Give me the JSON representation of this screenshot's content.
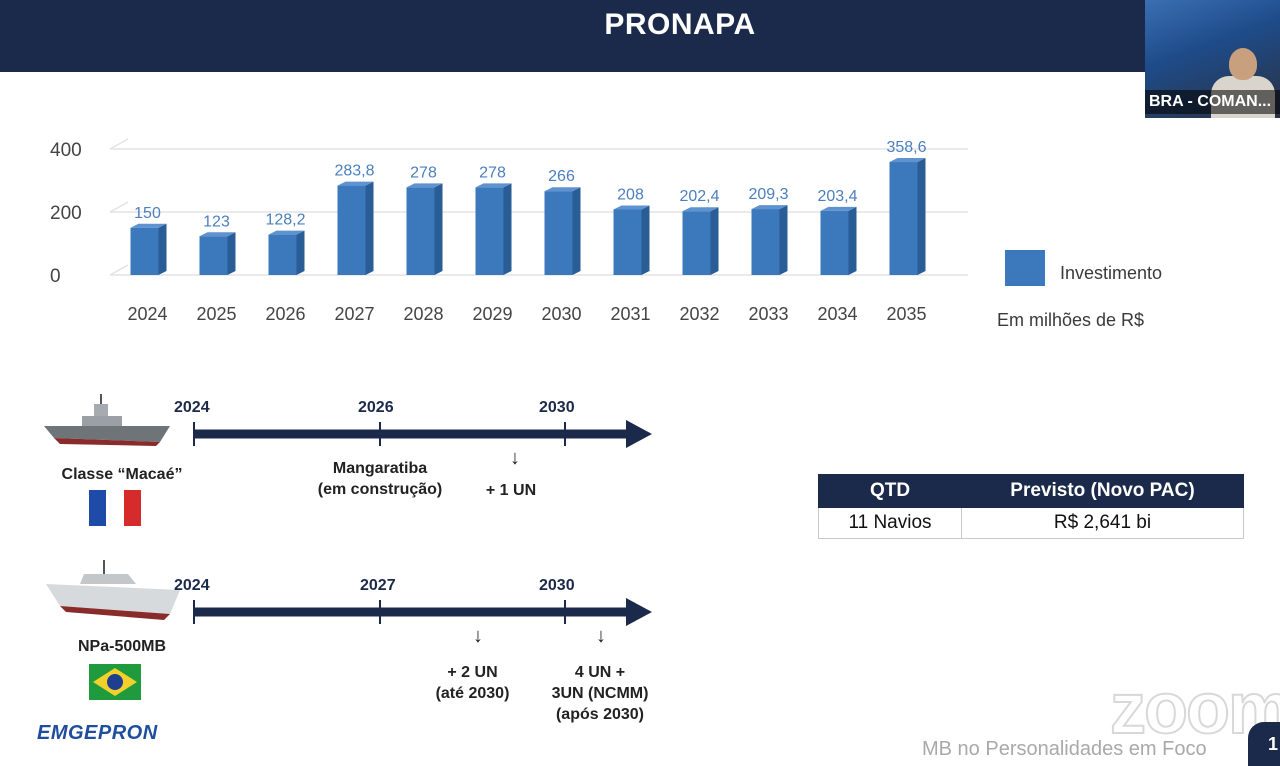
{
  "slide": {
    "title": "PRONAPA",
    "video_label": "BRA - COMAN...",
    "footer": "MB no Personalidades em Foco",
    "page_number": "1",
    "zoom_watermark": "zoom",
    "logo_text": "EMGEPRON"
  },
  "chart_data": {
    "type": "bar",
    "categories": [
      "2024",
      "2025",
      "2026",
      "2027",
      "2028",
      "2029",
      "2030",
      "2031",
      "2032",
      "2033",
      "2034",
      "2035"
    ],
    "values": [
      150,
      123,
      128.2,
      283.8,
      278,
      278,
      266,
      208,
      202.4,
      209.3,
      203.4,
      358.6
    ],
    "value_labels": [
      "150",
      "123",
      "128,2",
      "283,8",
      "278",
      "278",
      "266",
      "208",
      "202,4",
      "209,3",
      "203,4",
      "358,6"
    ],
    "y_ticks": [
      "0",
      "200",
      "400"
    ],
    "ylim": [
      0,
      400
    ],
    "series": [
      {
        "name": "Investimento"
      }
    ],
    "unit_note": "Em milhões de R$",
    "grid": true,
    "legend_position": "right",
    "bar_color": "#3b78bc",
    "label_color": "#4b7fc0"
  },
  "timeline1": {
    "ship_name": "Classe “Macaé”",
    "years": [
      "2024",
      "2026",
      "2030"
    ],
    "note_a": [
      "Mangaratiba",
      "(em construção)"
    ],
    "note_b": "+ 1 UN"
  },
  "timeline2": {
    "ship_name": "NPa-500MB",
    "years": [
      "2024",
      "2027",
      "2030"
    ],
    "note_a": [
      "+ 2 UN",
      "(até 2030)"
    ],
    "note_b": [
      "4 UN +",
      "3UN (NCMM)",
      "(após 2030)"
    ]
  },
  "table": {
    "headers": [
      "QTD",
      "Previsto (Novo PAC)"
    ],
    "row": [
      "11 Navios",
      "R$ 2,641 bi"
    ]
  },
  "colors": {
    "navy": "#1b2a4a",
    "bar": "#3b78bc"
  }
}
